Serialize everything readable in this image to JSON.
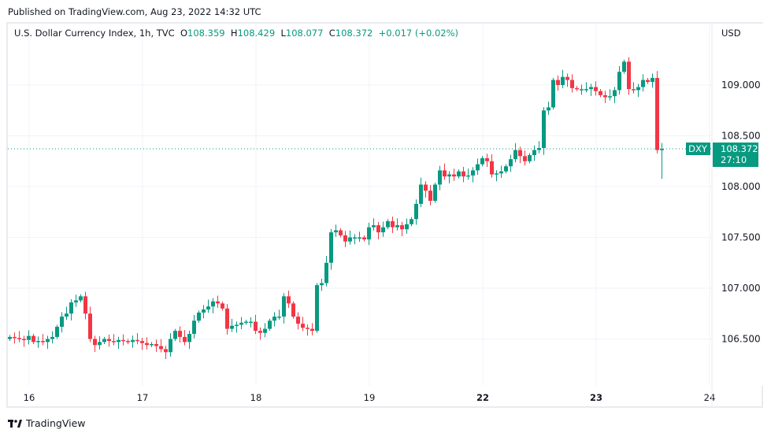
{
  "published": "Published on TradingView.com, Aug 23, 2022 14:32 UTC",
  "legend": {
    "title": "U.S. Dollar Currency Index, 1h, TVC",
    "o_label": "O",
    "o": "108.359",
    "h_label": "H",
    "h": "108.429",
    "l_label": "L",
    "l": "108.077",
    "c_label": "C",
    "c": "108.372",
    "change": "+0.017 (+0.02%)"
  },
  "currency": "USD",
  "price_tag": {
    "symbol": "DXY",
    "price": "108.372",
    "countdown": "27:10"
  },
  "footer": {
    "brand": "TradingView"
  },
  "colors": {
    "up": "#089981",
    "down": "#f23645",
    "grid": "#f0f3fa",
    "text": "#131722"
  },
  "chart_data": {
    "type": "candlestick",
    "title": "U.S. Dollar Currency Index, 1h, TVC",
    "ylabel": "USD",
    "ylim": [
      106.2,
      109.35
    ],
    "y_ticks": [
      "109.000",
      "108.500",
      "108.000",
      "107.500",
      "107.000",
      "106.500"
    ],
    "y_tick_values": [
      109.0,
      108.5,
      108.0,
      107.5,
      107.0,
      106.5
    ],
    "x_ticks": [
      {
        "label": "16",
        "index": 4,
        "bold": false
      },
      {
        "label": "17",
        "index": 28,
        "bold": false
      },
      {
        "label": "18",
        "index": 52,
        "bold": false
      },
      {
        "label": "19",
        "index": 76,
        "bold": false
      },
      {
        "label": "22",
        "index": 100,
        "bold": true
      },
      {
        "label": "23",
        "index": 124,
        "bold": true
      },
      {
        "label": "24",
        "index": 148,
        "bold": false
      }
    ],
    "last_price": 108.372,
    "closes": [
      106.52,
      106.51,
      106.5,
      106.49,
      106.53,
      106.47,
      106.48,
      106.47,
      106.5,
      106.52,
      106.62,
      106.72,
      106.75,
      106.86,
      106.88,
      106.92,
      106.75,
      106.5,
      106.44,
      106.47,
      106.5,
      106.48,
      106.47,
      106.49,
      106.48,
      106.47,
      106.49,
      106.48,
      106.46,
      106.44,
      106.45,
      106.43,
      106.4,
      106.37,
      106.5,
      106.58,
      106.52,
      106.47,
      106.55,
      106.68,
      106.76,
      106.79,
      106.82,
      106.87,
      106.85,
      106.8,
      106.6,
      106.63,
      106.64,
      106.66,
      106.67,
      106.67,
      106.58,
      106.56,
      106.6,
      106.68,
      106.72,
      106.72,
      106.92,
      106.85,
      106.72,
      106.65,
      106.61,
      106.6,
      106.58,
      107.03,
      107.05,
      107.25,
      107.55,
      107.57,
      107.52,
      107.46,
      107.5,
      107.5,
      107.5,
      107.48,
      107.6,
      107.62,
      107.55,
      107.6,
      107.66,
      107.6,
      107.62,
      107.58,
      107.63,
      107.68,
      107.83,
      108.02,
      107.96,
      107.86,
      108.02,
      108.16,
      108.1,
      108.12,
      108.1,
      108.15,
      108.1,
      108.11,
      108.16,
      108.22,
      108.28,
      108.25,
      108.12,
      108.13,
      108.15,
      108.2,
      108.27,
      108.36,
      108.3,
      108.25,
      108.31,
      108.36,
      108.38,
      108.75,
      108.78,
      109.05,
      109.0,
      109.08,
      109.05,
      108.97,
      108.96,
      108.96,
      108.96,
      108.98,
      108.94,
      108.9,
      108.88,
      108.89,
      108.95,
      109.13,
      109.23,
      108.96,
      108.95,
      108.98,
      109.05,
      109.03,
      109.07,
      108.36,
      108.372
    ],
    "first_open": 106.5,
    "last_candle": {
      "open": 108.359,
      "high": 108.429,
      "low": 108.077,
      "close": 108.372
    }
  }
}
